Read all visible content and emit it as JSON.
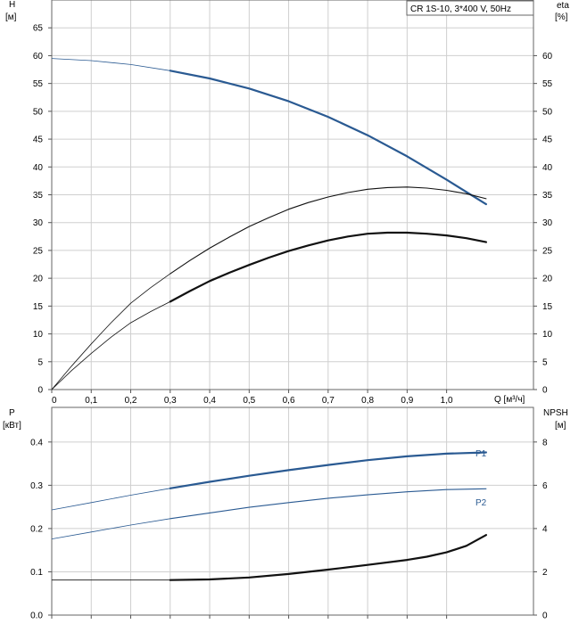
{
  "title_box": "CR 1S-10, 3*400 V, 50Hz",
  "colors": {
    "blue": "#2a5a92",
    "grid": "#cfcfcf",
    "axis": "#555555",
    "black": "#111111"
  },
  "chart_data": [
    {
      "type": "line",
      "title": "CR 1S-10, 3*400 V, 50Hz",
      "xlabel": "Q [м³/ч]",
      "x_ticks": [
        "0",
        "0,1",
        "0,2",
        "0,3",
        "0,4",
        "0,5",
        "0,6",
        "0,7",
        "0,8",
        "0,9",
        "1,0"
      ],
      "xlim": [
        0,
        1.22
      ],
      "left_axis": {
        "label_line1": "H",
        "label_line2": "[м]",
        "ylim": [
          0,
          70
        ],
        "ticks": [
          "0",
          "5",
          "10",
          "15",
          "20",
          "25",
          "30",
          "35",
          "40",
          "45",
          "50",
          "55",
          "60",
          "65"
        ]
      },
      "right_axis": {
        "label_line1": "eta",
        "label_line2": "[%]",
        "ylim": [
          0,
          70
        ],
        "ticks": [
          "0",
          "5",
          "10",
          "15",
          "20",
          "25",
          "30",
          "35",
          "40",
          "45",
          "50",
          "55",
          "60"
        ]
      },
      "series": [
        {
          "axis": "left",
          "color": "blue",
          "weight": "bold",
          "x": [
            0,
            0.1,
            0.2,
            0.3,
            0.4,
            0.5,
            0.6,
            0.7,
            0.8,
            0.9,
            1.0,
            1.1
          ],
          "y": [
            59.5,
            59.1,
            58.4,
            57.3,
            55.9,
            54.1,
            51.8,
            49.0,
            45.7,
            41.9,
            37.7,
            33.3
          ]
        },
        {
          "axis": "right",
          "color": "black",
          "weight": "medium",
          "x": [
            0,
            0.05,
            0.1,
            0.15,
            0.2,
            0.25,
            0.3,
            0.35,
            0.4,
            0.45,
            0.5,
            0.55,
            0.6,
            0.65,
            0.7,
            0.75,
            0.8,
            0.85,
            0.9,
            0.95,
            1.0,
            1.05,
            1.1
          ],
          "y": [
            0,
            4.2,
            8.2,
            12.0,
            15.5,
            18.3,
            20.8,
            23.2,
            25.4,
            27.4,
            29.3,
            30.9,
            32.4,
            33.6,
            34.6,
            35.4,
            36.0,
            36.3,
            36.4,
            36.2,
            35.8,
            35.2,
            34.3
          ]
        },
        {
          "axis": "right",
          "color": "black",
          "weight": "bold",
          "x": [
            0,
            0.05,
            0.1,
            0.15,
            0.2,
            0.25,
            0.3,
            0.35,
            0.4,
            0.45,
            0.5,
            0.55,
            0.6,
            0.65,
            0.7,
            0.75,
            0.8,
            0.85,
            0.9,
            0.95,
            1.0,
            1.05,
            1.1
          ],
          "y": [
            0,
            3.4,
            6.5,
            9.4,
            12.0,
            14.0,
            15.8,
            17.7,
            19.5,
            21.0,
            22.4,
            23.7,
            24.9,
            25.9,
            26.8,
            27.5,
            28.0,
            28.2,
            28.2,
            28.0,
            27.7,
            27.2,
            26.5
          ]
        }
      ]
    },
    {
      "type": "line",
      "xlim": [
        0,
        1.22
      ],
      "left_axis": {
        "label_line1": "P",
        "label_line2": "[кВт]",
        "ylim": [
          0,
          0.48
        ],
        "ticks": [
          "0.0",
          "0.1",
          "0.2",
          "0.3",
          "0.4"
        ]
      },
      "right_axis": {
        "label_line1": "NPSH",
        "label_line2": "[м]",
        "ylim": [
          0,
          9.6
        ],
        "ticks": [
          "0",
          "2",
          "4",
          "6",
          "8"
        ]
      },
      "series": [
        {
          "name": "P1",
          "axis": "left",
          "color": "blue",
          "weight": "bold",
          "x": [
            0,
            0.1,
            0.2,
            0.3,
            0.4,
            0.5,
            0.6,
            0.7,
            0.8,
            0.9,
            1.0,
            1.1
          ],
          "y": [
            0.243,
            0.26,
            0.277,
            0.293,
            0.308,
            0.322,
            0.335,
            0.347,
            0.358,
            0.367,
            0.373,
            0.376
          ]
        },
        {
          "name": "P2",
          "axis": "left",
          "color": "blue",
          "weight": "medium",
          "x": [
            0,
            0.1,
            0.2,
            0.3,
            0.4,
            0.5,
            0.6,
            0.7,
            0.8,
            0.9,
            1.0,
            1.1
          ],
          "y": [
            0.176,
            0.192,
            0.208,
            0.223,
            0.236,
            0.249,
            0.26,
            0.27,
            0.278,
            0.285,
            0.29,
            0.292
          ]
        },
        {
          "axis": "right",
          "color": "black",
          "weight": "bold",
          "x": [
            0,
            0.1,
            0.2,
            0.3,
            0.4,
            0.5,
            0.6,
            0.7,
            0.8,
            0.9,
            0.95,
            1.0,
            1.05,
            1.1
          ],
          "y": [
            1.62,
            1.62,
            1.62,
            1.62,
            1.65,
            1.74,
            1.9,
            2.1,
            2.32,
            2.55,
            2.7,
            2.9,
            3.2,
            3.7
          ]
        }
      ]
    }
  ]
}
